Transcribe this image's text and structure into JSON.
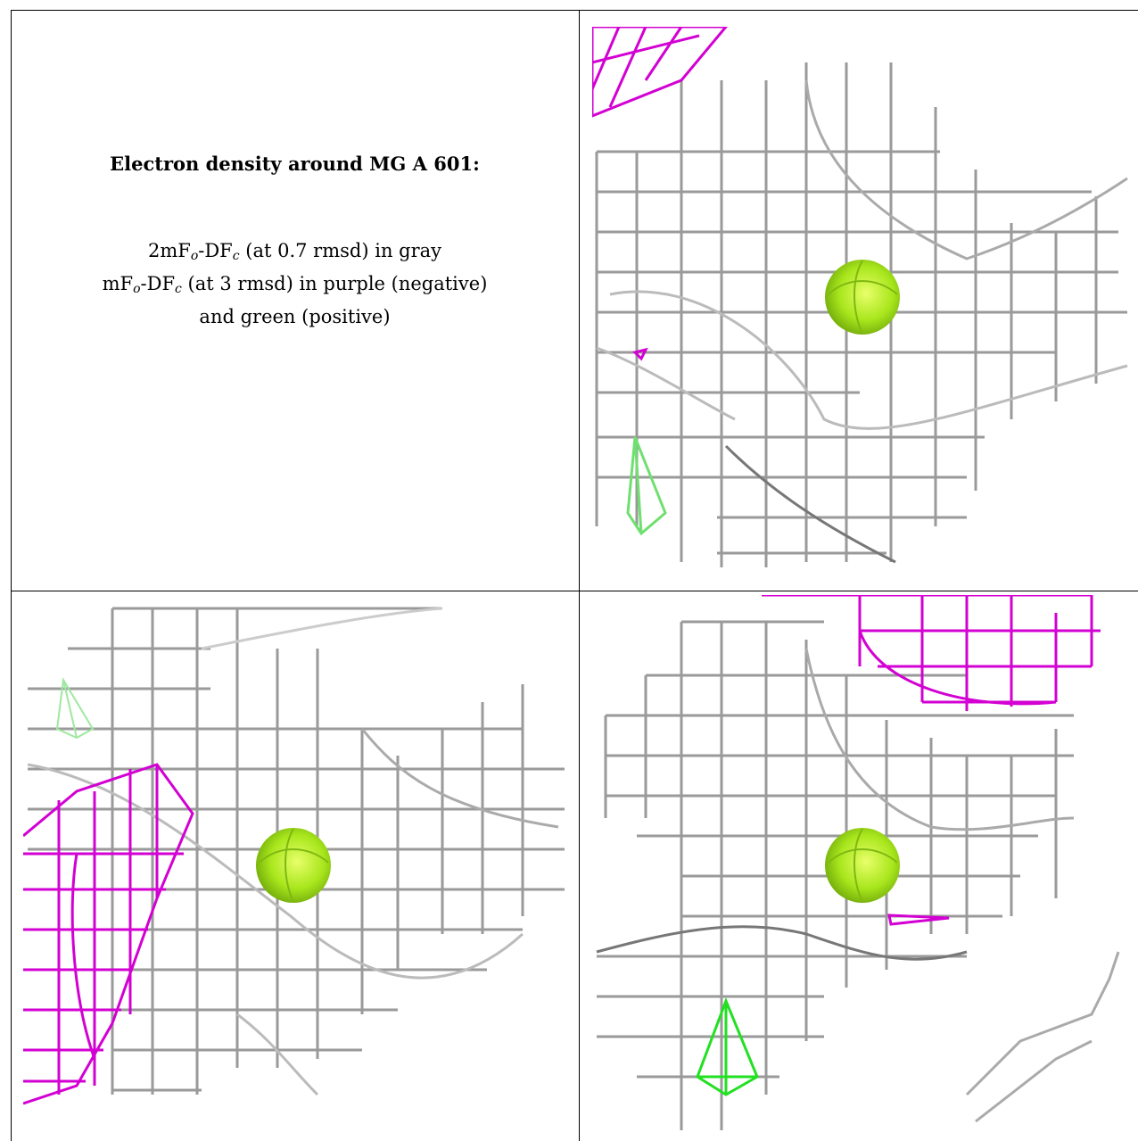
{
  "caption": {
    "title": "Electron density around MG A 601:",
    "line1_prefix": "2mF",
    "line1_sub1": "o",
    "line1_mid": "-DF",
    "line1_sub2": "c",
    "line1_suffix": " (at 0.7 rmsd) in gray",
    "line2_prefix": "mF",
    "line2_sub1": "o",
    "line2_mid": "-DF",
    "line2_sub2": "c",
    "line2_suffix": " (at 3 rmsd) in purple (negative)",
    "line3": "and green (positive)"
  },
  "colors": {
    "density_2fofc": "#9a9a9a",
    "density_negative": "#d300d3",
    "density_positive": "#22e022",
    "metal_ion": "#a8e61c",
    "border": "#000000"
  },
  "panels": [
    {
      "name": "view-1",
      "ion": "MG",
      "has_negative": true,
      "has_positive": true
    },
    {
      "name": "view-2",
      "ion": "MG",
      "has_negative": true,
      "has_positive": true
    },
    {
      "name": "view-3",
      "ion": "MG",
      "has_negative": true,
      "has_positive": true
    }
  ]
}
